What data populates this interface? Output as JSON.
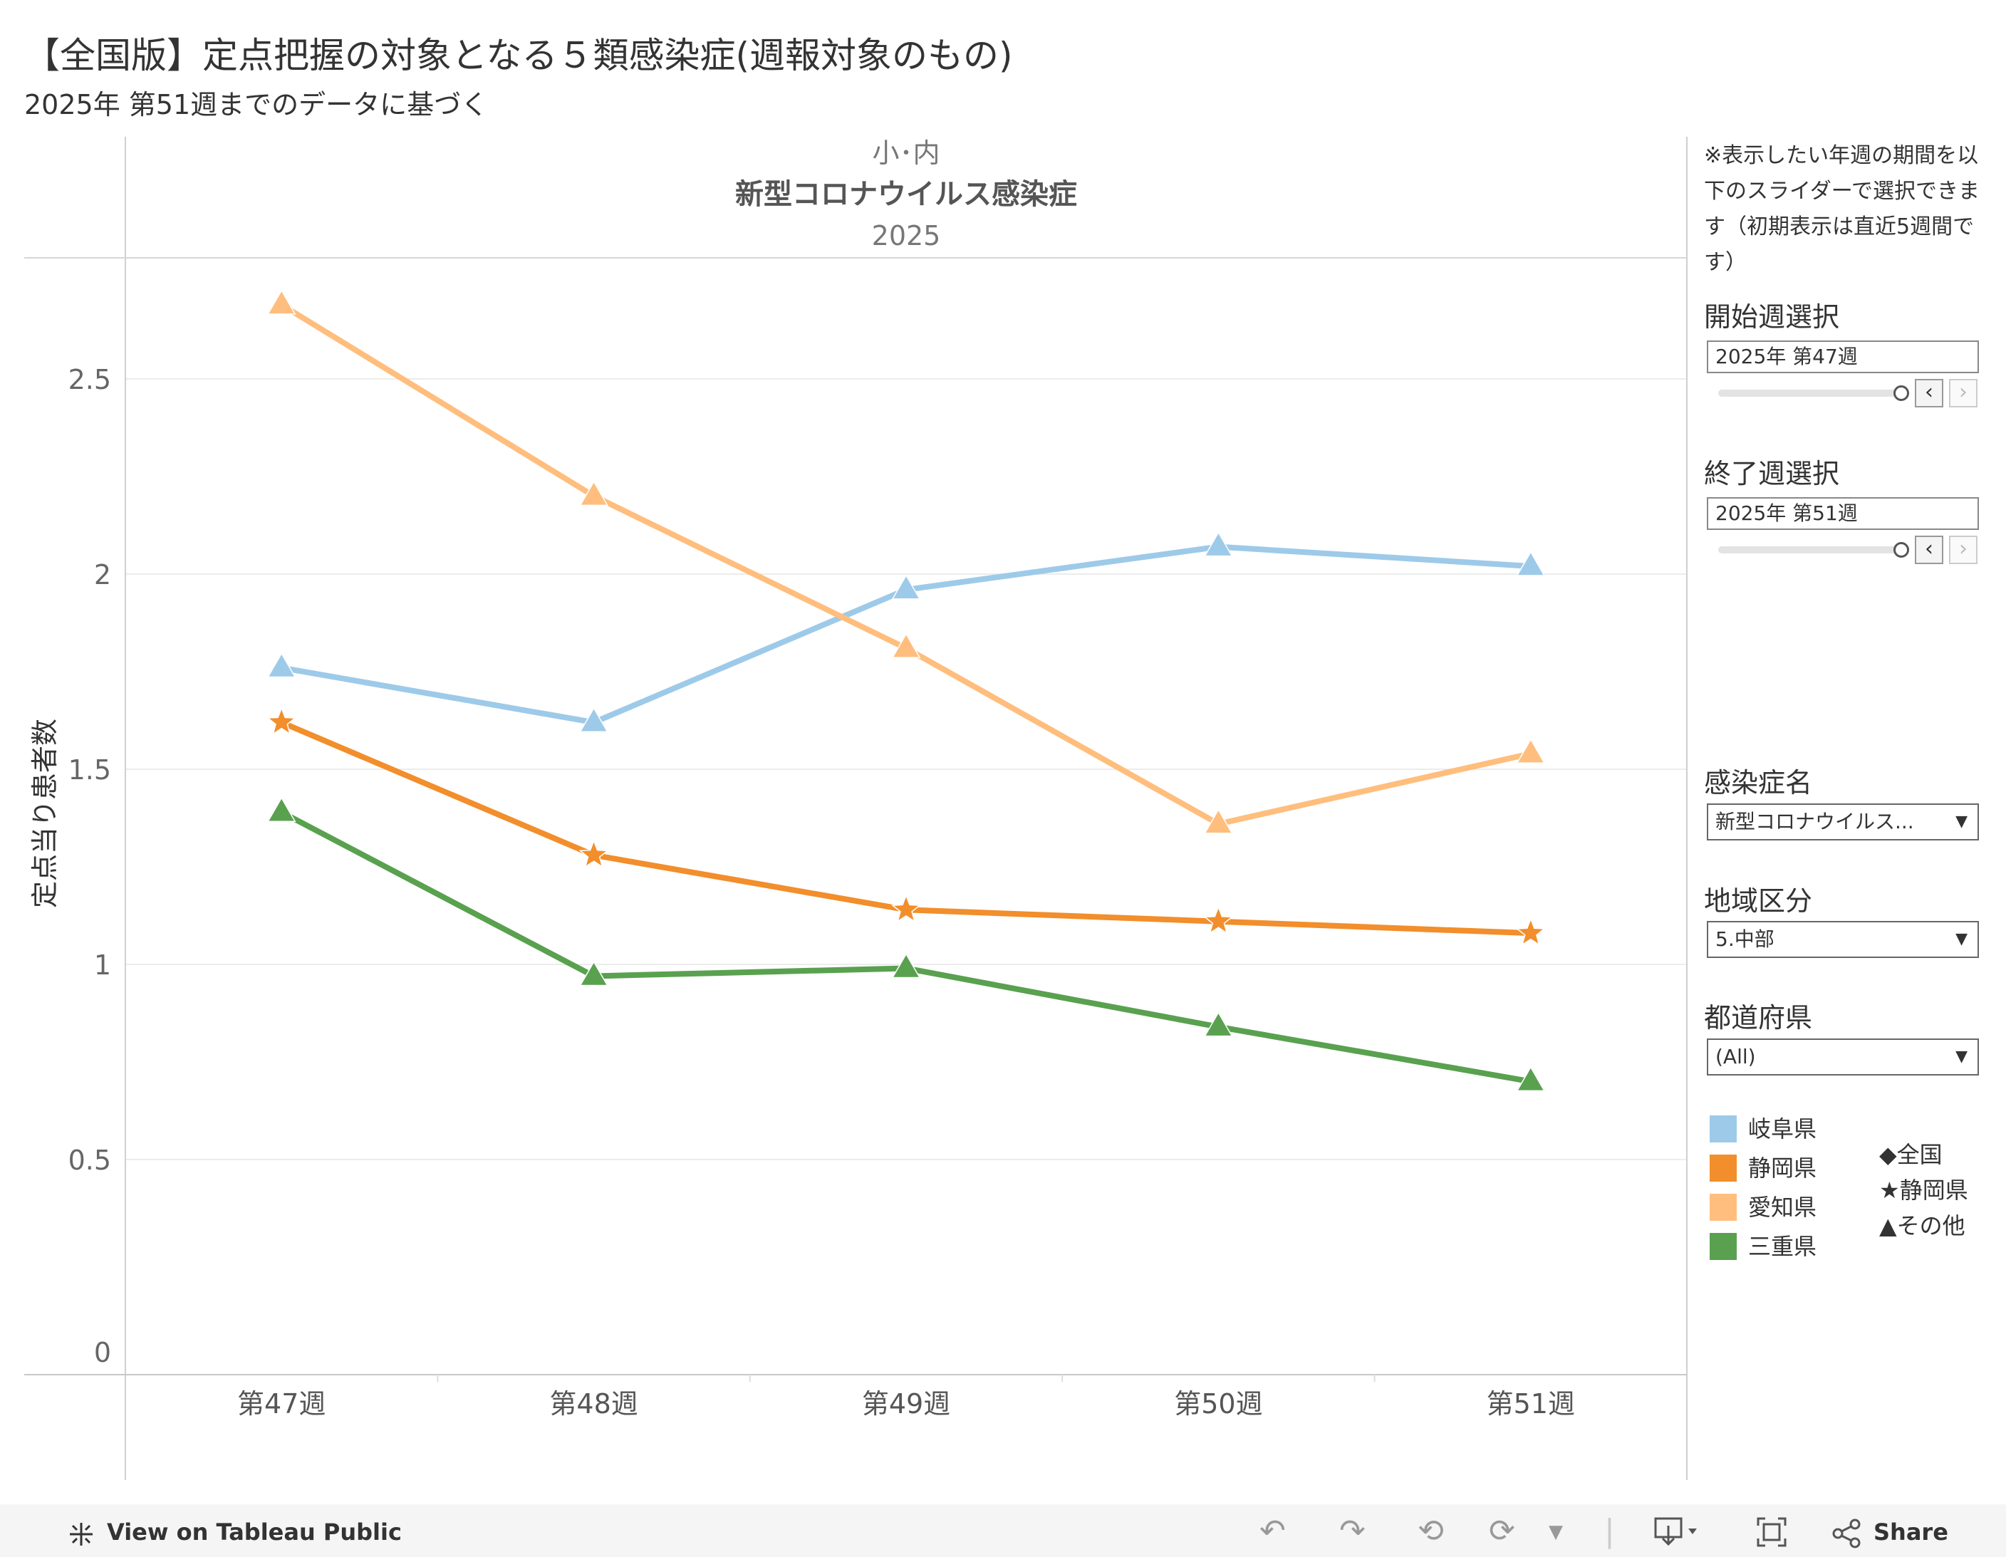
{
  "header": {
    "title": "【全国版】定点把握の対象となる５類感染症(週報対象のもの)",
    "subtitle": "2025年 第51週までのデータに基づく"
  },
  "chart_data": {
    "type": "line",
    "panel_header": [
      "小･内",
      "新型コロナウイルス感染症",
      "2025"
    ],
    "categories": [
      "第47週",
      "第48週",
      "第49週",
      "第50週",
      "第51週"
    ],
    "ylabel": "定点当り患者数",
    "yticks": [
      "0",
      "0.5",
      "1",
      "1.5",
      "2",
      "2.5"
    ],
    "ylim": [
      0,
      2.88
    ],
    "grid": true,
    "series": [
      {
        "name": "岐阜県",
        "color": "#9ecae9",
        "marker": "triangle",
        "values": [
          1.76,
          1.62,
          1.96,
          2.07,
          2.02
        ]
      },
      {
        "name": "静岡県",
        "color": "#f28e2b",
        "marker": "star",
        "values": [
          1.62,
          1.28,
          1.14,
          1.11,
          1.08
        ]
      },
      {
        "name": "愛知県",
        "color": "#ffbe7d",
        "marker": "triangle",
        "values": [
          2.69,
          2.2,
          1.81,
          1.36,
          1.54
        ]
      },
      {
        "name": "三重県",
        "color": "#59a14f",
        "marker": "triangle",
        "values": [
          1.39,
          0.97,
          0.99,
          0.84,
          0.7
        ]
      }
    ]
  },
  "controls": {
    "note": "※表示したい年週の期間を以下のスライダーで選択できます（初期表示は直近5週間です）",
    "start_label": "開始週選択",
    "start_value": "2025年 第47週",
    "end_label": "終了週選択",
    "end_value": "2025年 第51週",
    "disease_label": "感染症名",
    "disease_value": "新型コロナウイルス...",
    "region_label": "地域区分",
    "region_value": "5.中部",
    "pref_label": "都道府県",
    "pref_value": "(All)",
    "prev_icon": "chevron-left",
    "next_icon": "chevron-right",
    "dropdown_icon": "caret-down"
  },
  "legend": {
    "colors": [
      {
        "label": "岐阜県",
        "color": "#9ecae9"
      },
      {
        "label": "静岡県",
        "color": "#f28e2b"
      },
      {
        "label": "愛知県",
        "color": "#ffbe7d"
      },
      {
        "label": "三重県",
        "color": "#59a14f"
      }
    ],
    "shapes": [
      "◆全国",
      "★静岡県",
      "▲その他"
    ]
  },
  "toolbar": {
    "view_label": "View on Tableau Public",
    "share_label": "Share"
  }
}
